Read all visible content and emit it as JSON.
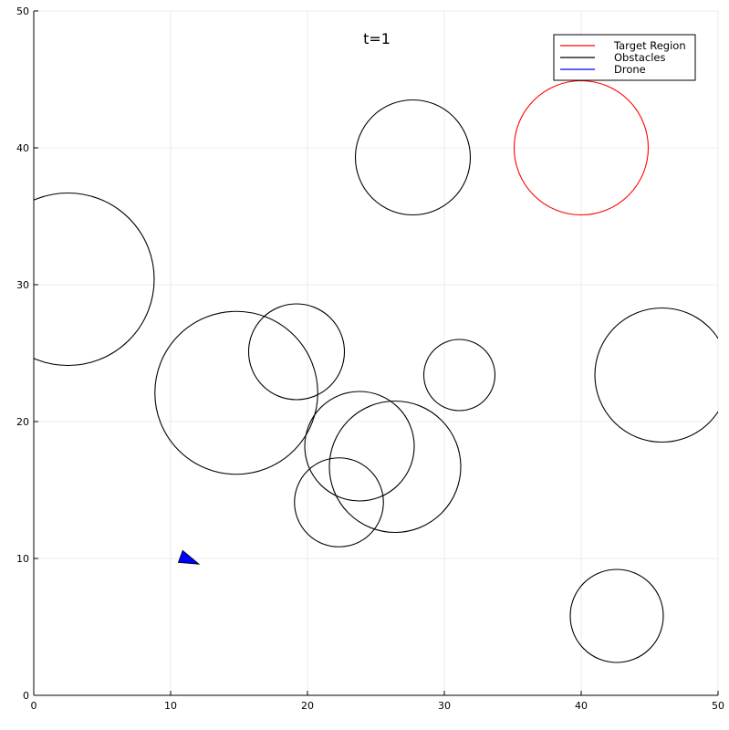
{
  "chart_data": {
    "type": "scatter",
    "title": "t=1",
    "xlabel": "",
    "ylabel": "",
    "xlim": [
      0,
      50
    ],
    "ylim": [
      0,
      50
    ],
    "x_ticks": [
      "0",
      "10",
      "20",
      "30",
      "40",
      "50"
    ],
    "y_ticks": [
      "0",
      "10",
      "20",
      "30",
      "40",
      "50"
    ],
    "grid": true,
    "legend_position": "top-right",
    "legend": [
      {
        "label": "Target Region",
        "color": "#ff0000"
      },
      {
        "label": "Obstacles",
        "color": "#000000"
      },
      {
        "label": "Drone",
        "color": "#0000ff"
      }
    ],
    "target_region": {
      "cx": 40,
      "cy": 40,
      "r": 4.9,
      "color": "#ff0000"
    },
    "obstacles": [
      {
        "cx": 27.7,
        "cy": 39.3,
        "r": 4.2
      },
      {
        "cx": 2.5,
        "cy": 30.4,
        "r": 6.3
      },
      {
        "cx": 14.8,
        "cy": 22.1,
        "r": 5.95
      },
      {
        "cx": 19.2,
        "cy": 25.1,
        "r": 3.5
      },
      {
        "cx": 31.1,
        "cy": 23.4,
        "r": 2.6
      },
      {
        "cx": 45.9,
        "cy": 23.4,
        "r": 4.9
      },
      {
        "cx": 23.8,
        "cy": 18.2,
        "r": 4.0
      },
      {
        "cx": 26.4,
        "cy": 16.7,
        "r": 4.8
      },
      {
        "cx": 22.3,
        "cy": 14.1,
        "r": 3.25
      },
      {
        "cx": 42.6,
        "cy": 5.8,
        "r": 3.4
      }
    ],
    "drone": {
      "x": 11.2,
      "y": 9.9,
      "heading_deg": -20,
      "color": "#0000ff"
    }
  }
}
